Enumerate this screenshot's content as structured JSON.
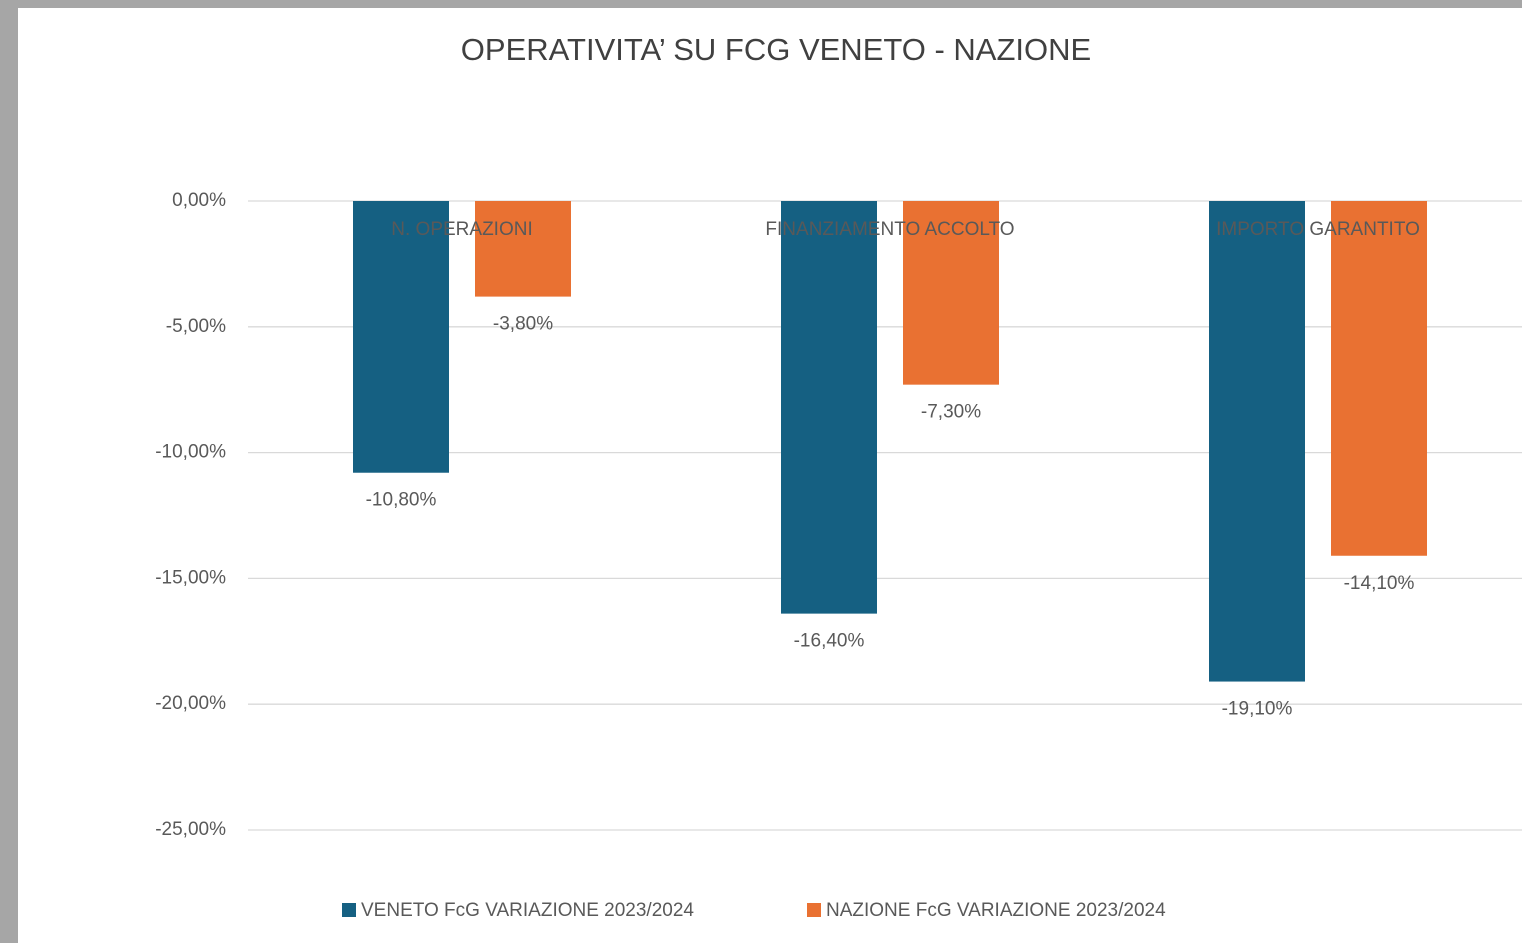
{
  "chart_data": {
    "type": "bar",
    "title": "OPERATIVITA’ SU FCG VENETO - NAZIONE",
    "categories": [
      "N. OPERAZIONI",
      "FINANZIAMENTO ACCOLTO",
      "IMPORTO GARANTITO"
    ],
    "series": [
      {
        "name": "VENETO FcG VARIAZIONE 2023/2024",
        "color": "#156082",
        "values": [
          -10.8,
          -16.4,
          -19.1
        ],
        "value_labels": [
          "-10,80%",
          "-16,40%",
          "-19,10%"
        ]
      },
      {
        "name": "NAZIONE FcG VARIAZIONE 2023/2024",
        "color": "#E97132",
        "values": [
          -3.8,
          -7.3,
          -14.1
        ],
        "value_labels": [
          "-3,80%",
          "-7,30%",
          "-14,10%"
        ]
      }
    ],
    "ylim": [
      -25,
      0
    ],
    "yticks": [
      {
        "value": 0,
        "label": "0,00%"
      },
      {
        "value": -5,
        "label": "-5,00%"
      },
      {
        "value": -10,
        "label": "-10,00%"
      },
      {
        "value": -15,
        "label": "-15,00%"
      },
      {
        "value": -20,
        "label": "-20,00%"
      },
      {
        "value": -25,
        "label": "-25,00%"
      }
    ],
    "grid": true,
    "legend": "bottom"
  }
}
